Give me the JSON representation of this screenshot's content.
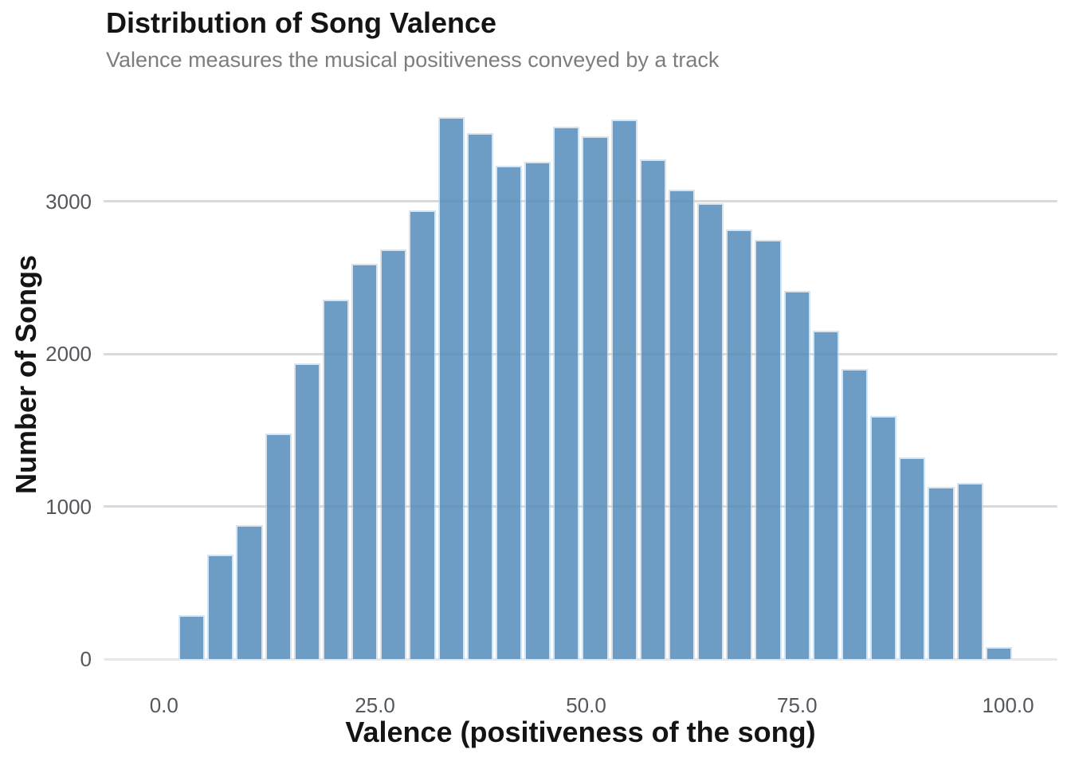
{
  "chart_data": {
    "type": "bar",
    "chart_kind": "histogram",
    "title": "Distribution of Song Valence",
    "subtitle": "Valence measures the musical positiveness conveyed by a track",
    "xlabel": "Valence (positiveness of the song)",
    "ylabel": "Number of Songs",
    "x_tick_labels": [
      "0.0",
      "25.0",
      "50.0",
      "75.0",
      "100.0"
    ],
    "x_tick_values": [
      0,
      25,
      50,
      75,
      100
    ],
    "y_tick_labels": [
      "0",
      "1000",
      "2000",
      "3000"
    ],
    "y_tick_values": [
      0,
      1000,
      2000,
      3000
    ],
    "xlim": [
      -7.2,
      105.8
    ],
    "ylim": [
      0,
      3730
    ],
    "grid": "horizontal-only",
    "legend": "none",
    "bin_start": 1.7,
    "bin_width": 3.414,
    "values": [
      290,
      685,
      880,
      1480,
      1940,
      2355,
      2590,
      2685,
      2945,
      3555,
      3450,
      3235,
      3260,
      3490,
      3430,
      3540,
      3275,
      3080,
      2990,
      2815,
      2750,
      2415,
      2155,
      1905,
      1595,
      1325,
      1130,
      1155,
      80
    ],
    "colors": {
      "bar_fill": "#6d9cc4",
      "bar_stroke": "#d6e4f0",
      "gridline": "#e7e7e9",
      "gridline_on_bar": "rgba(90,110,135,0.10)",
      "tick_label": "#54585c",
      "title": "#141414",
      "subtitle": "#7d7d7d",
      "axis_title": "#141414",
      "background": "#ffffff"
    }
  }
}
